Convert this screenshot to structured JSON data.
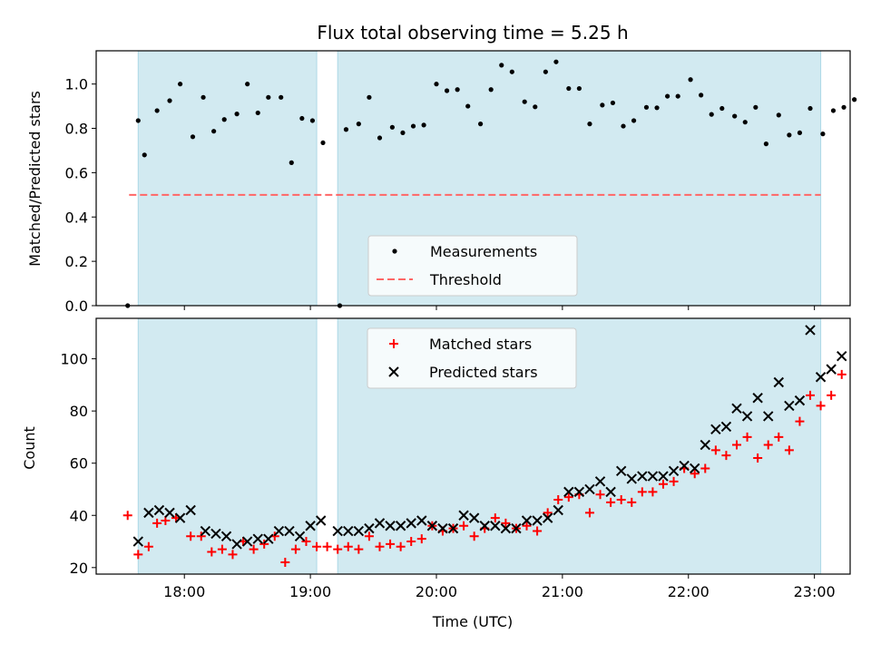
{
  "title": "Flux total observing time = 5.25 h",
  "colors": {
    "shade": "#add8e6",
    "threshold": "#ff6666",
    "measurements": "#000000",
    "matched": "#ff0000",
    "predicted": "#000000"
  },
  "chart_data": [
    {
      "type": "scatter",
      "ylabel": "Matched/Predicted stars",
      "ylim": [
        0,
        1.15
      ],
      "yticks": [
        0.0,
        0.2,
        0.4,
        0.6,
        0.8,
        1.0
      ],
      "ytick_labels": [
        "0.0",
        "0.2",
        "0.4",
        "0.6",
        "0.8",
        "1.0"
      ],
      "xlim": [
        "17:18",
        "23:17"
      ],
      "shaded_intervals": [
        [
          "17:38",
          "19:03"
        ],
        [
          "19:13",
          "23:03"
        ]
      ],
      "threshold": 0.5,
      "legend": {
        "position": "lower-center",
        "entries": [
          "Measurements",
          "Threshold"
        ]
      },
      "series": [
        {
          "name": "Measurements",
          "points": [
            [
              "17:33",
              0.0
            ],
            [
              "17:38",
              0.835
            ],
            [
              "17:41",
              0.68
            ],
            [
              "17:47",
              0.88
            ],
            [
              "17:53",
              0.925
            ],
            [
              "17:58",
              1.0
            ],
            [
              "18:04",
              0.762
            ],
            [
              "18:09",
              0.94
            ],
            [
              "18:14",
              0.787
            ],
            [
              "18:19",
              0.84
            ],
            [
              "18:25",
              0.865
            ],
            [
              "18:30",
              1.0
            ],
            [
              "18:35",
              0.87
            ],
            [
              "18:40",
              0.94
            ],
            [
              "18:46",
              0.94
            ],
            [
              "18:51",
              0.645
            ],
            [
              "18:56",
              0.845
            ],
            [
              "19:01",
              0.835
            ],
            [
              "19:06",
              0.735
            ],
            [
              "19:14",
              0.0
            ],
            [
              "19:17",
              0.795
            ],
            [
              "19:23",
              0.82
            ],
            [
              "19:28",
              0.94
            ],
            [
              "19:33",
              0.757
            ],
            [
              "19:39",
              0.805
            ],
            [
              "19:44",
              0.78
            ],
            [
              "19:49",
              0.81
            ],
            [
              "19:54",
              0.815
            ],
            [
              "20:00",
              1.0
            ],
            [
              "20:05",
              0.97
            ],
            [
              "20:10",
              0.975
            ],
            [
              "20:15",
              0.9
            ],
            [
              "20:21",
              0.82
            ],
            [
              "20:26",
              0.975
            ],
            [
              "20:31",
              1.085
            ],
            [
              "20:36",
              1.055
            ],
            [
              "20:42",
              0.92
            ],
            [
              "20:47",
              0.897
            ],
            [
              "20:52",
              1.055
            ],
            [
              "20:57",
              1.1
            ],
            [
              "21:03",
              0.98
            ],
            [
              "21:08",
              0.98
            ],
            [
              "21:13",
              0.82
            ],
            [
              "21:19",
              0.905
            ],
            [
              "21:24",
              0.915
            ],
            [
              "21:29",
              0.81
            ],
            [
              "21:34",
              0.835
            ],
            [
              "21:40",
              0.895
            ],
            [
              "21:45",
              0.893
            ],
            [
              "21:50",
              0.945
            ],
            [
              "21:55",
              0.945
            ],
            [
              "22:01",
              1.02
            ],
            [
              "22:06",
              0.95
            ],
            [
              "22:11",
              0.863
            ],
            [
              "22:16",
              0.89
            ],
            [
              "22:22",
              0.855
            ],
            [
              "22:27",
              0.828
            ],
            [
              "22:32",
              0.895
            ],
            [
              "22:37",
              0.73
            ],
            [
              "22:43",
              0.86
            ],
            [
              "22:48",
              0.77
            ],
            [
              "22:53",
              0.78
            ],
            [
              "22:58",
              0.89
            ],
            [
              "23:04",
              0.775
            ],
            [
              "23:09",
              0.88
            ],
            [
              "23:14",
              0.895
            ],
            [
              "23:19",
              0.93
            ]
          ]
        }
      ]
    },
    {
      "type": "scatter",
      "xlabel": "Time (UTC)",
      "ylabel": "Count",
      "ylim": [
        17.5,
        115.5
      ],
      "yticks": [
        20,
        40,
        60,
        80,
        100
      ],
      "ytick_labels": [
        "20",
        "40",
        "60",
        "80",
        "100"
      ],
      "xlim": [
        "17:18",
        "23:17"
      ],
      "xticks": [
        "18:00",
        "19:00",
        "20:00",
        "21:00",
        "22:00",
        "23:00"
      ],
      "xtick_labels": [
        "18:00",
        "19:00",
        "20:00",
        "21:00",
        "22:00",
        "23:00"
      ],
      "shaded_intervals": [
        [
          "17:38",
          "19:03"
        ],
        [
          "19:13",
          "23:03"
        ]
      ],
      "legend": {
        "position": "upper-center",
        "entries": [
          "Matched stars",
          "Predicted stars"
        ]
      },
      "series": [
        {
          "name": "Matched stars",
          "points": [
            [
              "17:33",
              40
            ],
            [
              "17:38",
              25
            ],
            [
              "17:43",
              28
            ],
            [
              "17:47",
              37
            ],
            [
              "17:51",
              38
            ],
            [
              "17:56",
              39
            ],
            [
              "18:03",
              32
            ],
            [
              "18:08",
              32
            ],
            [
              "18:13",
              26
            ],
            [
              "18:18",
              27
            ],
            [
              "18:23",
              25
            ],
            [
              "18:28",
              30
            ],
            [
              "18:33",
              27
            ],
            [
              "18:38",
              29
            ],
            [
              "18:43",
              32
            ],
            [
              "18:48",
              22
            ],
            [
              "18:53",
              27
            ],
            [
              "18:58",
              30
            ],
            [
              "19:03",
              28
            ],
            [
              "19:08",
              28
            ],
            [
              "19:13",
              27
            ],
            [
              "19:18",
              28
            ],
            [
              "19:23",
              27
            ],
            [
              "19:28",
              32
            ],
            [
              "19:33",
              28
            ],
            [
              "19:38",
              29
            ],
            [
              "19:43",
              28
            ],
            [
              "19:48",
              30
            ],
            [
              "19:53",
              31
            ],
            [
              "19:58",
              36
            ],
            [
              "20:03",
              34
            ],
            [
              "20:08",
              35
            ],
            [
              "20:13",
              36
            ],
            [
              "20:18",
              32
            ],
            [
              "20:23",
              35
            ],
            [
              "20:28",
              39
            ],
            [
              "20:33",
              37
            ],
            [
              "20:38",
              35
            ],
            [
              "20:43",
              36
            ],
            [
              "20:48",
              34
            ],
            [
              "20:53",
              41
            ],
            [
              "20:58",
              46
            ],
            [
              "21:03",
              47
            ],
            [
              "21:08",
              48
            ],
            [
              "21:13",
              41
            ],
            [
              "21:18",
              48
            ],
            [
              "21:23",
              45
            ],
            [
              "21:28",
              46
            ],
            [
              "21:33",
              45
            ],
            [
              "21:38",
              49
            ],
            [
              "21:43",
              49
            ],
            [
              "21:48",
              52
            ],
            [
              "21:53",
              53
            ],
            [
              "21:58",
              58
            ],
            [
              "22:03",
              56
            ],
            [
              "22:08",
              58
            ],
            [
              "22:13",
              65
            ],
            [
              "22:18",
              63
            ],
            [
              "22:23",
              67
            ],
            [
              "22:28",
              70
            ],
            [
              "22:33",
              62
            ],
            [
              "22:38",
              67
            ],
            [
              "22:43",
              70
            ],
            [
              "22:48",
              65
            ],
            [
              "22:53",
              76
            ],
            [
              "22:58",
              86
            ],
            [
              "23:03",
              82
            ],
            [
              "23:08",
              86
            ],
            [
              "23:13",
              94
            ]
          ]
        },
        {
          "name": "Predicted stars",
          "points": [
            [
              "17:38",
              30
            ],
            [
              "17:43",
              41
            ],
            [
              "17:48",
              42
            ],
            [
              "17:53",
              41
            ],
            [
              "17:58",
              39
            ],
            [
              "18:03",
              42
            ],
            [
              "18:10",
              34
            ],
            [
              "18:15",
              33
            ],
            [
              "18:20",
              32
            ],
            [
              "18:25",
              29
            ],
            [
              "18:30",
              30
            ],
            [
              "18:35",
              31
            ],
            [
              "18:40",
              31
            ],
            [
              "18:45",
              34
            ],
            [
              "18:50",
              34
            ],
            [
              "18:55",
              32
            ],
            [
              "19:00",
              36
            ],
            [
              "19:05",
              38
            ],
            [
              "19:13",
              34
            ],
            [
              "19:18",
              34
            ],
            [
              "19:23",
              34
            ],
            [
              "19:28",
              35
            ],
            [
              "19:33",
              37
            ],
            [
              "19:38",
              36
            ],
            [
              "19:43",
              36
            ],
            [
              "19:48",
              37
            ],
            [
              "19:53",
              38
            ],
            [
              "19:58",
              36
            ],
            [
              "20:03",
              35
            ],
            [
              "20:08",
              35
            ],
            [
              "20:13",
              40
            ],
            [
              "20:18",
              39
            ],
            [
              "20:23",
              36
            ],
            [
              "20:28",
              36
            ],
            [
              "20:33",
              35
            ],
            [
              "20:38",
              35
            ],
            [
              "20:43",
              38
            ],
            [
              "20:48",
              38
            ],
            [
              "20:53",
              39
            ],
            [
              "20:58",
              42
            ],
            [
              "21:03",
              49
            ],
            [
              "21:08",
              49
            ],
            [
              "21:13",
              50
            ],
            [
              "21:18",
              53
            ],
            [
              "21:23",
              49
            ],
            [
              "21:28",
              57
            ],
            [
              "21:33",
              54
            ],
            [
              "21:38",
              55
            ],
            [
              "21:43",
              55
            ],
            [
              "21:48",
              55
            ],
            [
              "21:53",
              57
            ],
            [
              "21:58",
              59
            ],
            [
              "22:03",
              58
            ],
            [
              "22:08",
              67
            ],
            [
              "22:13",
              73
            ],
            [
              "22:18",
              74
            ],
            [
              "22:23",
              81
            ],
            [
              "22:28",
              78
            ],
            [
              "22:33",
              85
            ],
            [
              "22:38",
              78
            ],
            [
              "22:43",
              91
            ],
            [
              "22:48",
              82
            ],
            [
              "22:53",
              84
            ],
            [
              "22:58",
              111
            ],
            [
              "23:03",
              93
            ],
            [
              "23:08",
              96
            ],
            [
              "23:13",
              101
            ]
          ]
        }
      ]
    }
  ]
}
